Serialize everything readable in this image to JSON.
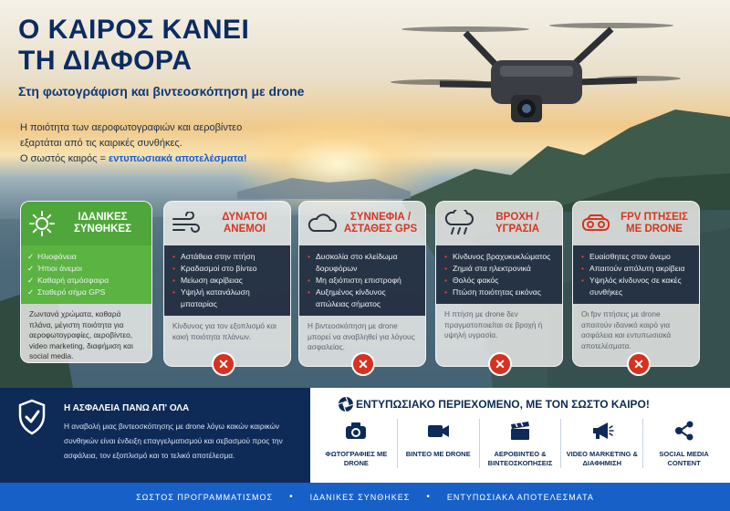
{
  "title": {
    "line1": "Ο ΚΑΙΡΟΣ ΚΑΝΕΙ",
    "line2": "ΤΗ ΔΙΑΦΟΡΑ",
    "subtitle": "Στη φωτογράφιση και βιντεοσκόπηση με drone"
  },
  "intro": {
    "line1": "Η ποιότητα των αεροφωτογραφιών και αεροβίντεο",
    "line2": "εξαρτάται από τις καιρικές συνθήκες.",
    "line3_prefix": "Ο σωστός καιρός = ",
    "line3_accent": "εντυπωσιακά αποτελέσματα!"
  },
  "cards": [
    {
      "icon": "sun-icon",
      "title": "ΙΔΑΝΙΚΕΣ ΣΥΝΘΗΚΕΣ",
      "items": [
        "Ηλιοφάνεια",
        "Ήπιοι άνεμοι",
        "Καθαρή ατμόσφαιρα",
        "Σταθερό σήμα GPS"
      ],
      "note": "Ζωντανά χρώματα, καθαρά πλάνα, μέγιστη ποιότητα για αεροφωτογραφίες, αεροβίντεο, video marketing, διαφήμιση και social media."
    },
    {
      "icon": "wind-icon",
      "title": "ΔΥΝΑΤΟΙ ΑΝΕΜΟΙ",
      "items": [
        "Αστάθεια στην πτήση",
        "Κραδασμοί στο βίντεο",
        "Μείωση ακρίβειας",
        "Υψηλή κατανάλωση μπαταρίας"
      ],
      "note": "Κίνδυνος για τον εξοπλισμό και κακή ποιότητα πλάνων."
    },
    {
      "icon": "cloud-icon",
      "title": "ΣΥΝΝΕΦΙΑ / ΑΣΤΑΘΕΣ GPS",
      "items": [
        "Δυσκολία στο κλείδωμα δορυφόρων",
        "Μη αξιόπιστη επιστροφή",
        "Αυξημένος κίνδυνος απώλειας σήματος"
      ],
      "note": "Η βιντεοσκόπηση με drone μπορεί να αναβληθεί για λόγους ασφαλείας."
    },
    {
      "icon": "rain-icon",
      "title": "ΒΡΟΧΗ / ΥΓΡΑΣΙΑ",
      "items": [
        "Κίνδυνος βραχυκυκλώματος",
        "Ζημιά στα ηλεκτρονικά",
        "Θολός φακός",
        "Πτώση ποιότητας εικόνας"
      ],
      "note": "Η πτήση με drone δεν πραγματοποιείται σε βροχή ή υψηλή υγρασία."
    },
    {
      "icon": "fpv-goggles-icon",
      "title": "FPV ΠΤΗΣΕΙΣ ΜΕ DRONE",
      "items": [
        "Ευαίσθητες στον άνεμο",
        "Απαιτούν απόλυτη ακρίβεια",
        "Υψηλός κίνδυνος σε κακές συνθήκες"
      ],
      "note": "Οι fpv πτήσεις με drone απαιτούν ιδανικό καιρό για ασφάλεια και εντυπωσιακά αποτελέσματα."
    }
  ],
  "safety": {
    "title": "Η ΑΣΦΑΛΕΙΑ ΠΑΝΩ ΑΠ' ΟΛΑ",
    "text": "Η αναβολή μιας βιντεοσκόπησης με drone λόγω κακών καιρικών συνθηκών είναι ένδειξη επαγγελματισμού και σεβασμού προς την ασφάλεια, τον εξοπλισμό και το τελικό αποτέλεσμα."
  },
  "content": {
    "title": "ΕΝΤΥΠΩΣΙΑΚΟ ΠΕΡΙΕΧΟΜΕΝΟ, ΜΕ ΤΟΝ ΣΩΣΤΟ ΚΑΙΡΟ!",
    "tiles": [
      {
        "icon": "camera-icon",
        "label": "ΦΩΤΟΓΡΑΦΙΕΣ ΜΕ DRONE"
      },
      {
        "icon": "video-camera-icon",
        "label": "ΒΙΝΤΕΟ ΜΕ DRONE"
      },
      {
        "icon": "clapperboard-icon",
        "label": "ΑΕΡΟΒΙΝΤΕΟ & ΒΙΝΤΕΟΣΚΟΠΗΣΕΙΣ"
      },
      {
        "icon": "megaphone-icon",
        "label": "VIDEO MARKETING & ΔΙΑΦΗΜΙΣΗ"
      },
      {
        "icon": "share-icon",
        "label": "SOCIAL MEDIA CONTENT"
      }
    ]
  },
  "footer": {
    "items": [
      "ΣΩΣΤΟΣ ΠΡΟΓΡΑΜΜΑΤΙΣΜΟΣ",
      "ΙΔΑΝΙΚΕΣ ΣΥΝΘΗΚΕΣ",
      "ΕΝΤΥΠΩΣΙΑΚΑ ΑΠΟΤΕΛΕΣΜΑΤΑ"
    ]
  },
  "colors": {
    "navy": "#0b2b63",
    "accent_blue": "#1a5fd0",
    "good_green": "#4fa63a",
    "warning_red": "#d8351f",
    "footer_blue": "#1660c8"
  }
}
